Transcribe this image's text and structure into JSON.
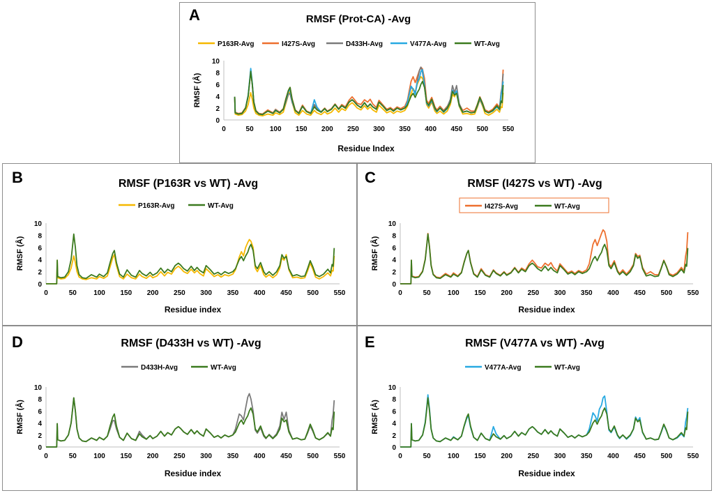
{
  "colors": {
    "P163R": "#f5b800",
    "I427S": "#ed6f2e",
    "D433H": "#7a7a7a",
    "V477A": "#27a9e1",
    "WT": "#3b7a1e",
    "axis": "#bfbfbf",
    "panel_border": "#8c8c8c"
  },
  "chart_data": [
    {
      "id": "A",
      "type": "line",
      "panel_label": "A",
      "title": "RMSF (Prot-CA) -Avg",
      "xlabel": "Residue Index",
      "ylabel": "RMSF (Å)",
      "xlim": [
        0,
        550
      ],
      "ylim": [
        0,
        10
      ],
      "xticks": [
        0,
        50,
        100,
        150,
        200,
        250,
        300,
        350,
        400,
        450,
        500,
        550
      ],
      "yticks": [
        0,
        2,
        4,
        6,
        8,
        10
      ],
      "series": [
        {
          "name": "P163R-Avg",
          "key": "P163R"
        },
        {
          "name": "I427S-Avg",
          "key": "I427S"
        },
        {
          "name": "D433H-Avg",
          "key": "D433H"
        },
        {
          "name": "V477A-Avg",
          "key": "V477A"
        },
        {
          "name": "WT-Avg",
          "key": "WT"
        }
      ],
      "legend_boxed": false
    },
    {
      "id": "B",
      "type": "line",
      "panel_label": "B",
      "title": "RMSF (P163R vs WT) -Avg",
      "xlabel": "Residue index",
      "ylabel": "RMSF (Å)",
      "xlim": [
        0,
        550
      ],
      "ylim": [
        0,
        10
      ],
      "xticks": [
        0,
        50,
        100,
        150,
        200,
        250,
        300,
        350,
        400,
        450,
        500,
        550
      ],
      "yticks": [
        0,
        2,
        4,
        6,
        8,
        10
      ],
      "series": [
        {
          "name": "P163R-Avg",
          "key": "P163R"
        },
        {
          "name": "WT-Avg",
          "key": "WT"
        }
      ],
      "legend_boxed": false
    },
    {
      "id": "C",
      "type": "line",
      "panel_label": "C",
      "title": "RMSF (I427S vs WT) -Avg",
      "xlabel": "Residue index",
      "ylabel": "RMSF (Å)",
      "xlim": [
        0,
        550
      ],
      "ylim": [
        0,
        10
      ],
      "xticks": [
        0,
        50,
        100,
        150,
        200,
        250,
        300,
        350,
        400,
        450,
        500,
        550
      ],
      "yticks": [
        0,
        2,
        4,
        6,
        8,
        10
      ],
      "series": [
        {
          "name": "I427S-Avg",
          "key": "I427S"
        },
        {
          "name": "WT-Avg",
          "key": "WT"
        }
      ],
      "legend_boxed": true
    },
    {
      "id": "D",
      "type": "line",
      "panel_label": "D",
      "title": "RMSF (D433H vs WT) -Avg",
      "xlabel": "Residue index",
      "ylabel": "RMSF (Å)",
      "xlim": [
        0,
        550
      ],
      "ylim": [
        0,
        10
      ],
      "xticks": [
        0,
        50,
        100,
        150,
        200,
        250,
        300,
        350,
        400,
        450,
        500,
        550
      ],
      "yticks": [
        0,
        2,
        4,
        6,
        8,
        10
      ],
      "series": [
        {
          "name": "D433H-Avg",
          "key": "D433H"
        },
        {
          "name": "WT-Avg",
          "key": "WT"
        }
      ],
      "legend_boxed": false
    },
    {
      "id": "E",
      "type": "line",
      "panel_label": "E",
      "title": "RMSF (V477A vs WT) -Avg",
      "xlabel": "Residue index",
      "ylabel": "RMSF (Å)",
      "xlim": [
        0,
        550
      ],
      "ylim": [
        0,
        10
      ],
      "xticks": [
        0,
        50,
        100,
        150,
        200,
        250,
        300,
        350,
        400,
        450,
        500,
        550
      ],
      "yticks": [
        0,
        2,
        4,
        6,
        8,
        10
      ],
      "series": [
        {
          "name": "V477A-Avg",
          "key": "V477A"
        },
        {
          "name": "WT-Avg",
          "key": "WT"
        }
      ],
      "legend_boxed": false
    }
  ],
  "profiles": {
    "x": [
      0,
      20,
      21,
      22,
      28,
      35,
      42,
      47,
      50,
      52,
      55,
      58,
      62,
      68,
      75,
      85,
      95,
      100,
      108,
      115,
      120,
      125,
      128,
      132,
      138,
      145,
      152,
      160,
      168,
      175,
      180,
      188,
      195,
      200,
      208,
      215,
      222,
      228,
      235,
      242,
      248,
      252,
      258,
      265,
      272,
      278,
      283,
      288,
      295,
      300,
      308,
      315,
      322,
      328,
      335,
      342,
      350,
      355,
      362,
      366,
      370,
      374,
      378,
      381,
      384,
      388,
      392,
      396,
      402,
      408,
      412,
      418,
      425,
      432,
      438,
      442,
      446,
      450,
      455,
      462,
      470,
      478,
      485,
      490,
      495,
      500,
      505,
      512,
      520,
      528,
      533,
      536,
      538,
      540
    ],
    "WT": [
      0,
      0,
      3.9,
      1.2,
      1.0,
      1.1,
      2.0,
      4.0,
      6.5,
      8.2,
      6.0,
      3.0,
      1.5,
      1.0,
      0.9,
      1.5,
      1.1,
      1.6,
      1.2,
      1.8,
      3.5,
      5.0,
      5.5,
      3.5,
      1.6,
      1.1,
      2.3,
      1.4,
      1.1,
      2.2,
      1.7,
      1.3,
      1.9,
      1.4,
      1.8,
      2.6,
      1.8,
      2.4,
      2.0,
      3.0,
      3.4,
      3.1,
      2.5,
      2.1,
      2.9,
      2.2,
      2.7,
      2.2,
      1.8,
      3.0,
      2.3,
      1.6,
      1.9,
      1.5,
      2.0,
      1.7,
      2.0,
      2.5,
      4.0,
      4.5,
      3.8,
      4.6,
      5.2,
      6.0,
      6.5,
      5.5,
      3.0,
      2.5,
      3.5,
      2.0,
      1.5,
      2.0,
      1.4,
      2.0,
      3.0,
      4.8,
      4.2,
      4.5,
      2.5,
      1.3,
      1.5,
      1.2,
      1.3,
      2.5,
      3.8,
      2.8,
      1.5,
      1.2,
      1.6,
      2.4,
      1.8,
      3.2,
      2.9,
      5.9
    ],
    "P163R": [
      0,
      0,
      3.9,
      1.0,
      0.8,
      0.9,
      1.5,
      2.6,
      3.8,
      4.6,
      3.5,
      2.0,
      1.1,
      0.8,
      0.7,
      1.0,
      0.8,
      1.2,
      0.9,
      1.3,
      2.8,
      4.3,
      4.8,
      3.0,
      1.2,
      0.8,
      1.6,
      1.0,
      0.8,
      1.6,
      1.2,
      0.9,
      1.4,
      1.0,
      1.3,
      2.0,
      1.3,
      1.9,
      1.6,
      2.5,
      2.9,
      2.6,
      2.0,
      1.7,
      2.4,
      1.8,
      2.2,
      1.7,
      1.3,
      2.5,
      1.8,
      1.2,
      1.5,
      1.1,
      1.5,
      1.3,
      1.6,
      2.3,
      4.4,
      5.3,
      4.6,
      6.0,
      6.8,
      7.3,
      7.0,
      6.0,
      2.6,
      2.0,
      3.0,
      1.5,
      1.1,
      1.5,
      1.0,
      1.5,
      2.6,
      4.3,
      3.9,
      4.8,
      2.3,
      1.0,
      1.1,
      0.9,
      1.0,
      2.1,
      3.4,
      2.4,
      1.1,
      0.8,
      1.2,
      1.8,
      1.3,
      2.2,
      2.1,
      4.6
    ],
    "I427S": [
      0,
      0,
      3.9,
      1.3,
      1.1,
      1.2,
      2.1,
      4.1,
      6.6,
      8.3,
      6.1,
      3.1,
      1.6,
      1.1,
      1.0,
      1.7,
      1.2,
      1.8,
      1.3,
      1.9,
      3.6,
      5.0,
      5.5,
      3.6,
      1.7,
      1.2,
      2.5,
      1.5,
      1.2,
      2.3,
      1.8,
      1.4,
      2.0,
      1.5,
      1.9,
      2.7,
      1.9,
      2.6,
      2.2,
      3.3,
      3.9,
      3.5,
      2.8,
      2.6,
      3.4,
      3.0,
      3.5,
      2.7,
      2.1,
      3.3,
      2.5,
      1.8,
      2.1,
      1.7,
      2.2,
      1.9,
      2.3,
      3.3,
      6.5,
      7.3,
      6.3,
      7.3,
      8.3,
      8.9,
      8.6,
      7.0,
      3.3,
      2.8,
      3.8,
      2.2,
      1.7,
      2.3,
      1.6,
      2.3,
      3.2,
      5.0,
      4.5,
      4.7,
      2.7,
      1.6,
      2.0,
      1.5,
      1.5,
      2.6,
      3.9,
      2.9,
      1.7,
      1.4,
      1.8,
      2.7,
      2.1,
      4.6,
      5.5,
      8.5
    ],
    "D433H": [
      0,
      0,
      3.9,
      1.2,
      1.0,
      1.1,
      2.0,
      4.0,
      6.5,
      8.2,
      6.0,
      3.0,
      1.5,
      1.0,
      0.9,
      1.5,
      1.1,
      1.6,
      1.2,
      1.8,
      3.0,
      4.4,
      4.4,
      3.0,
      1.6,
      1.1,
      2.3,
      1.4,
      1.1,
      2.6,
      2.0,
      1.3,
      1.9,
      1.4,
      1.8,
      2.6,
      1.8,
      2.4,
      2.0,
      3.0,
      3.4,
      3.1,
      2.5,
      2.1,
      2.9,
      2.2,
      2.7,
      2.2,
      1.8,
      3.0,
      2.3,
      1.6,
      1.9,
      1.5,
      2.0,
      1.7,
      2.0,
      3.0,
      5.5,
      5.2,
      4.5,
      6.5,
      8.3,
      8.9,
      8.0,
      6.0,
      2.8,
      2.3,
      3.2,
      1.8,
      1.4,
      2.1,
      1.5,
      2.2,
      3.5,
      5.8,
      4.6,
      5.8,
      2.8,
      1.3,
      1.5,
      1.2,
      1.3,
      2.3,
      3.5,
      2.6,
      1.5,
      1.2,
      1.6,
      2.3,
      1.8,
      4.5,
      5.5,
      7.8
    ],
    "V477A": [
      0,
      0,
      3.9,
      1.2,
      1.0,
      1.1,
      2.0,
      4.2,
      6.8,
      8.7,
      6.3,
      3.0,
      1.5,
      1.0,
      0.9,
      1.5,
      1.1,
      1.7,
      1.2,
      1.8,
      3.4,
      4.8,
      5.2,
      3.3,
      1.6,
      1.1,
      2.3,
      1.4,
      1.1,
      3.4,
      2.2,
      1.3,
      1.9,
      1.4,
      1.8,
      2.6,
      1.8,
      2.4,
      2.0,
      3.0,
      3.4,
      3.1,
      2.5,
      2.1,
      2.9,
      2.2,
      2.7,
      2.2,
      1.8,
      3.0,
      2.3,
      1.6,
      1.9,
      1.5,
      2.0,
      1.7,
      2.0,
      3.0,
      5.7,
      5.2,
      4.3,
      6.3,
      7.0,
      8.2,
      8.5,
      5.8,
      2.8,
      2.4,
      3.3,
      1.9,
      1.4,
      2.0,
      1.3,
      1.9,
      3.0,
      5.0,
      4.3,
      4.9,
      2.4,
      1.3,
      1.5,
      1.2,
      1.3,
      2.4,
      3.7,
      2.7,
      1.5,
      1.2,
      1.5,
      2.2,
      1.7,
      4.2,
      5.0,
      6.5
    ]
  }
}
